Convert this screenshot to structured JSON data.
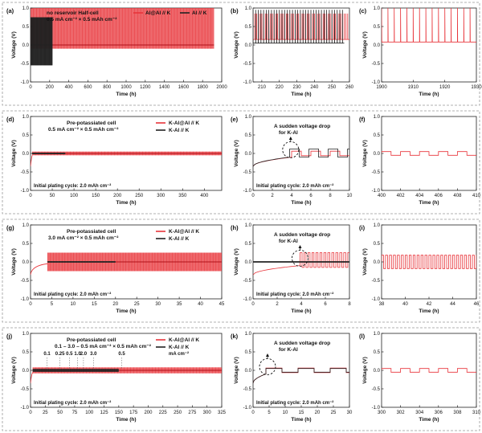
{
  "chart_data": [
    {
      "id": "a",
      "label": "(a)",
      "type": "line",
      "xlabel": "Time (h)",
      "ylabel": "Voltage (V)",
      "xlim": [
        0,
        2000
      ],
      "ylim": [
        -1.0,
        1.0
      ],
      "xticks": [
        0,
        200,
        400,
        600,
        800,
        1000,
        1200,
        1400,
        1600,
        1800,
        2000
      ],
      "yticks": [
        -1.0,
        -0.5,
        0.0,
        0.5,
        1.0
      ],
      "annotations": [
        "no reservoir Half-cell",
        "0.5 mA cm⁻² × 0.5 mAh cm⁻²"
      ],
      "legend": {
        "position": "top-right",
        "inline": true
      },
      "series": [
        {
          "name": "Al@Al // K",
          "color": "#e8343a",
          "x_range": [
            0,
            1920
          ],
          "upper": 1.0,
          "lower": -0.1,
          "center": 0.0
        },
        {
          "name": "Al // K",
          "color": "#222222",
          "x_range": [
            0,
            230
          ],
          "upper": 0.75,
          "lower": -0.55,
          "center": 0.0
        }
      ]
    },
    {
      "id": "b",
      "label": "(b)",
      "type": "line",
      "xlabel": "Time (h)",
      "ylabel": "Voltage (V)",
      "xlim": [
        205,
        260
      ],
      "ylim": [
        -1.0,
        1.0
      ],
      "xticks": [
        210,
        220,
        230,
        240,
        250,
        260
      ],
      "yticks": [
        -1.0,
        -0.5,
        0.0,
        0.5,
        1.0
      ],
      "series": [
        {
          "name": "Al@Al // K",
          "color": "#e8343a",
          "x_range": [
            205,
            260
          ],
          "upper": 0.85,
          "lower": -0.1,
          "center": 0.15,
          "period": 1.0
        },
        {
          "name": "Al // K",
          "color": "#222222",
          "x_range": [
            205,
            257
          ],
          "upper": 0.95,
          "lower": -0.55,
          "center": 0.05,
          "period": 1.5
        }
      ]
    },
    {
      "id": "c",
      "label": "(c)",
      "type": "line",
      "xlabel": "Time (h)",
      "ylabel": "Voltage (V)",
      "xlim": [
        1900,
        1930
      ],
      "ylim": [
        -1.0,
        1.0
      ],
      "xticks": [
        1900,
        1910,
        1920,
        1930
      ],
      "yticks": [
        -1.0,
        -0.5,
        0.0,
        0.5,
        1.0
      ],
      "series": [
        {
          "name": "Al@Al // K",
          "color": "#e8343a",
          "x_range": [
            1900,
            1930
          ],
          "upper": 1.0,
          "lower": 0.05,
          "center": 0.08,
          "period": 2.0
        }
      ]
    },
    {
      "id": "d",
      "label": "(d)",
      "type": "line",
      "xlabel": "Time (h)",
      "ylabel": "Voltage (V)",
      "xlim": [
        0,
        440
      ],
      "ylim": [
        -1.0,
        1.0
      ],
      "xticks": [
        0,
        50,
        100,
        150,
        200,
        250,
        300,
        350,
        400
      ],
      "yticks": [
        -1.0,
        -0.5,
        0.0,
        0.5,
        1.0
      ],
      "annotations": [
        "Pre-potassiated cell",
        "0.5 mA cm⁻² × 0.5 mAh cm⁻²",
        "Initial plating cycle: 2.0 mAh cm⁻²"
      ],
      "legend": {
        "position": "top-right"
      },
      "series": [
        {
          "name": "K-Al@Al // K",
          "color": "#e8343a",
          "x_range": [
            4,
            440
          ],
          "upper": 0.05,
          "lower": -0.05,
          "center": 0.0
        },
        {
          "name": "K-Al // K",
          "color": "#222222",
          "x_range": [
            4,
            80
          ],
          "upper": 0.02,
          "lower": -0.02,
          "center": 0.0
        }
      ]
    },
    {
      "id": "e",
      "label": "(e)",
      "type": "line",
      "xlabel": "Time (h)",
      "ylabel": "Voltage (V)",
      "xlim": [
        0,
        10
      ],
      "ylim": [
        -1.0,
        1.0
      ],
      "xticks": [
        0,
        2,
        4,
        6,
        8,
        10
      ],
      "yticks": [
        -1.0,
        -0.5,
        0.0,
        0.5,
        1.0
      ],
      "annotations": [
        "A sudden voltage drop",
        "for K-Al",
        "Initial plating cycle: 2.0 mAh cm⁻²"
      ],
      "series": [
        {
          "name": "K-Al@Al // K",
          "color": "#e8343a",
          "x_range": [
            0,
            10
          ],
          "upper": 0.06,
          "lower": -0.06,
          "center": 0.0,
          "period": 2.0,
          "start": 4.0
        },
        {
          "name": "K-Al // K",
          "color": "#222222",
          "x_range": [
            0,
            10
          ],
          "upper": 0.12,
          "lower": -0.1,
          "center": 0.0,
          "period": 2.0,
          "start": 3.8
        }
      ]
    },
    {
      "id": "f",
      "label": "(f)",
      "type": "line",
      "xlabel": "Time (h)",
      "ylabel": "Voltage (V)",
      "xlim": [
        400,
        410
      ],
      "ylim": [
        -1.0,
        1.0
      ],
      "xticks": [
        400,
        402,
        404,
        406,
        408,
        410
      ],
      "yticks": [
        -1.0,
        -0.5,
        0.0,
        0.5,
        1.0
      ],
      "series": [
        {
          "name": "K-Al@Al // K",
          "color": "#e8343a",
          "x_range": [
            400,
            410
          ],
          "upper": 0.05,
          "lower": -0.05,
          "center": 0.0,
          "period": 2.0
        }
      ]
    },
    {
      "id": "g",
      "label": "(g)",
      "type": "line",
      "xlabel": "Time (h)",
      "ylabel": "Voltage (V)",
      "xlim": [
        0,
        45
      ],
      "ylim": [
        -1.0,
        1.0
      ],
      "xticks": [
        0,
        5,
        10,
        15,
        20,
        25,
        30,
        35,
        40,
        45
      ],
      "yticks": [
        -1.0,
        -0.5,
        0.0,
        0.5,
        1.0
      ],
      "annotations": [
        "Pre-potassiated cell",
        "3.0 mA cm⁻² × 0.5 mAh cm⁻²",
        "Initial plating cycle: 2.0 mAh cm⁻²"
      ],
      "legend": {
        "position": "top-right"
      },
      "series": [
        {
          "name": "K-Al@Al // K",
          "color": "#e8343a",
          "x_range": [
            4,
            45
          ],
          "upper": 0.25,
          "lower": -0.25,
          "center": 0.0
        },
        {
          "name": "K-Al // K",
          "color": "#222222",
          "x_range": [
            4,
            20
          ],
          "upper": 0.02,
          "lower": -0.02,
          "center": 0.0
        }
      ]
    },
    {
      "id": "h",
      "label": "(h)",
      "type": "line",
      "xlabel": "Time (h)",
      "ylabel": "Voltage (V)",
      "xlim": [
        0,
        8
      ],
      "ylim": [
        -1.0,
        1.0
      ],
      "xticks": [
        0,
        2,
        4,
        6,
        8
      ],
      "yticks": [
        -1.0,
        -0.5,
        0.0,
        0.5,
        1.0
      ],
      "annotations": [
        "A sudden voltage drop",
        "for K-Al",
        "Initial plating cycle: 2.0 mAh cm⁻²"
      ],
      "series": [
        {
          "name": "K-Al@Al // K",
          "color": "#e8343a",
          "x_range": [
            0,
            8
          ],
          "upper": 0.25,
          "lower": -0.15,
          "center": 0.0,
          "period": 0.33,
          "start": 3.9
        },
        {
          "name": "K-Al // K",
          "color": "#222222",
          "x_range": [
            0,
            8
          ],
          "upper": 0.02,
          "lower": -0.02,
          "center": 0.0,
          "start": 3.8
        }
      ]
    },
    {
      "id": "i",
      "label": "(i)",
      "type": "line",
      "xlabel": "Time (h)",
      "ylabel": "Voltage (V)",
      "xlim": [
        38,
        46
      ],
      "ylim": [
        -1.0,
        1.0
      ],
      "xticks": [
        38,
        40,
        42,
        44,
        46
      ],
      "yticks": [
        -1.0,
        -0.5,
        0.0,
        0.5,
        1.0
      ],
      "series": [
        {
          "name": "K-Al@Al // K",
          "color": "#e8343a",
          "x_range": [
            38,
            46
          ],
          "upper": 0.18,
          "lower": -0.18,
          "center": 0.0,
          "period": 0.333
        }
      ]
    },
    {
      "id": "j",
      "label": "(j)",
      "type": "line",
      "xlabel": "Time (h)",
      "ylabel": "Voltage (V)",
      "xlim": [
        0,
        325
      ],
      "ylim": [
        -1.0,
        1.0
      ],
      "xticks": [
        0,
        25,
        50,
        75,
        100,
        125,
        150,
        175,
        200,
        225,
        250,
        275,
        300,
        325
      ],
      "yticks": [
        -1.0,
        -0.5,
        0.0,
        0.5,
        1.0
      ],
      "annotations": [
        "Pre-potassiated cell",
        "0.1 – 3.0 – 0.5 mA cm⁻² × 0.5 mAh cm⁻²",
        "Initial plating cycle: 2.0 mAh cm⁻²",
        "mA cm⁻²"
      ],
      "rate_labels": [
        {
          "text": "0.1",
          "x": 28
        },
        {
          "text": "0.25",
          "x": 50
        },
        {
          "text": "0.5",
          "x": 66
        },
        {
          "text": "1.0",
          "x": 80
        },
        {
          "text": "2.0",
          "x": 90
        },
        {
          "text": "3.0",
          "x": 107
        },
        {
          "text": "0.5",
          "x": 155
        }
      ],
      "legend": {
        "position": "top-right"
      },
      "series": [
        {
          "name": "K-Al@Al // K",
          "color": "#e8343a",
          "x_range": [
            4,
            325
          ],
          "upper": 0.08,
          "lower": -0.08,
          "center": 0.0
        },
        {
          "name": "K-Al // K",
          "color": "#222222",
          "x_range": [
            4,
            150
          ],
          "upper": 0.04,
          "lower": -0.04,
          "center": 0.0
        }
      ]
    },
    {
      "id": "k",
      "label": "(k)",
      "type": "line",
      "xlabel": "Time (h)",
      "ylabel": "Voltage (V)",
      "xlim": [
        0,
        30
      ],
      "ylim": [
        -1.0,
        1.0
      ],
      "xticks": [
        0,
        5,
        10,
        15,
        20,
        25,
        30
      ],
      "yticks": [
        -1.0,
        -0.5,
        0.0,
        0.5,
        1.0
      ],
      "annotations": [
        "A sudden voltage drop",
        "for K-Al",
        "Initial plating cycle: 2.0 mAh cm⁻²"
      ],
      "series": [
        {
          "name": "K-Al@Al // K",
          "color": "#e8343a",
          "x_range": [
            0,
            30
          ],
          "upper": 0.06,
          "lower": -0.06,
          "center": 0.0,
          "period": 10.0,
          "start": 4.0
        },
        {
          "name": "K-Al // K",
          "color": "#222222",
          "x_range": [
            0,
            30
          ],
          "upper": 0.05,
          "lower": -0.05,
          "center": 0.0,
          "period": 10.0,
          "start": 4.0
        }
      ]
    },
    {
      "id": "l",
      "label": "(l)",
      "type": "line",
      "xlabel": "Time (h)",
      "ylabel": "Voltage (V)",
      "xlim": [
        300,
        310
      ],
      "ylim": [
        -1.0,
        1.0
      ],
      "xticks": [
        300,
        302,
        304,
        306,
        308,
        310
      ],
      "yticks": [
        -1.0,
        -0.5,
        0.0,
        0.5,
        1.0
      ],
      "series": [
        {
          "name": "K-Al@Al // K",
          "color": "#e8343a",
          "x_range": [
            300,
            310
          ],
          "upper": 0.05,
          "lower": -0.05,
          "center": 0.0,
          "period": 2.0
        }
      ]
    }
  ]
}
